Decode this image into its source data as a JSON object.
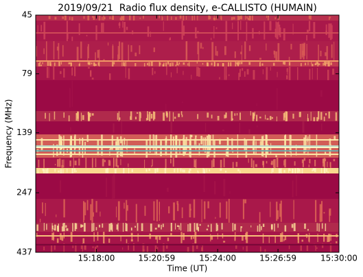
{
  "chart_data": {
    "type": "spectrogram",
    "title": "2019/09/21  Radio flux density, e-CALLISTO (HUMAIN)",
    "xlabel": "Time (UT)",
    "ylabel": "Frequency (MHz)",
    "xlim": [
      "15:15:00",
      "15:30:00"
    ],
    "xticks": [
      "15:18:00",
      "15:20:59",
      "15:24:00",
      "15:26:59",
      "15:30:00"
    ],
    "ylim": [
      45,
      437
    ],
    "yticks": [
      45,
      79,
      139,
      247,
      437
    ],
    "y_scale": "log",
    "y_inverted": true
  }
}
